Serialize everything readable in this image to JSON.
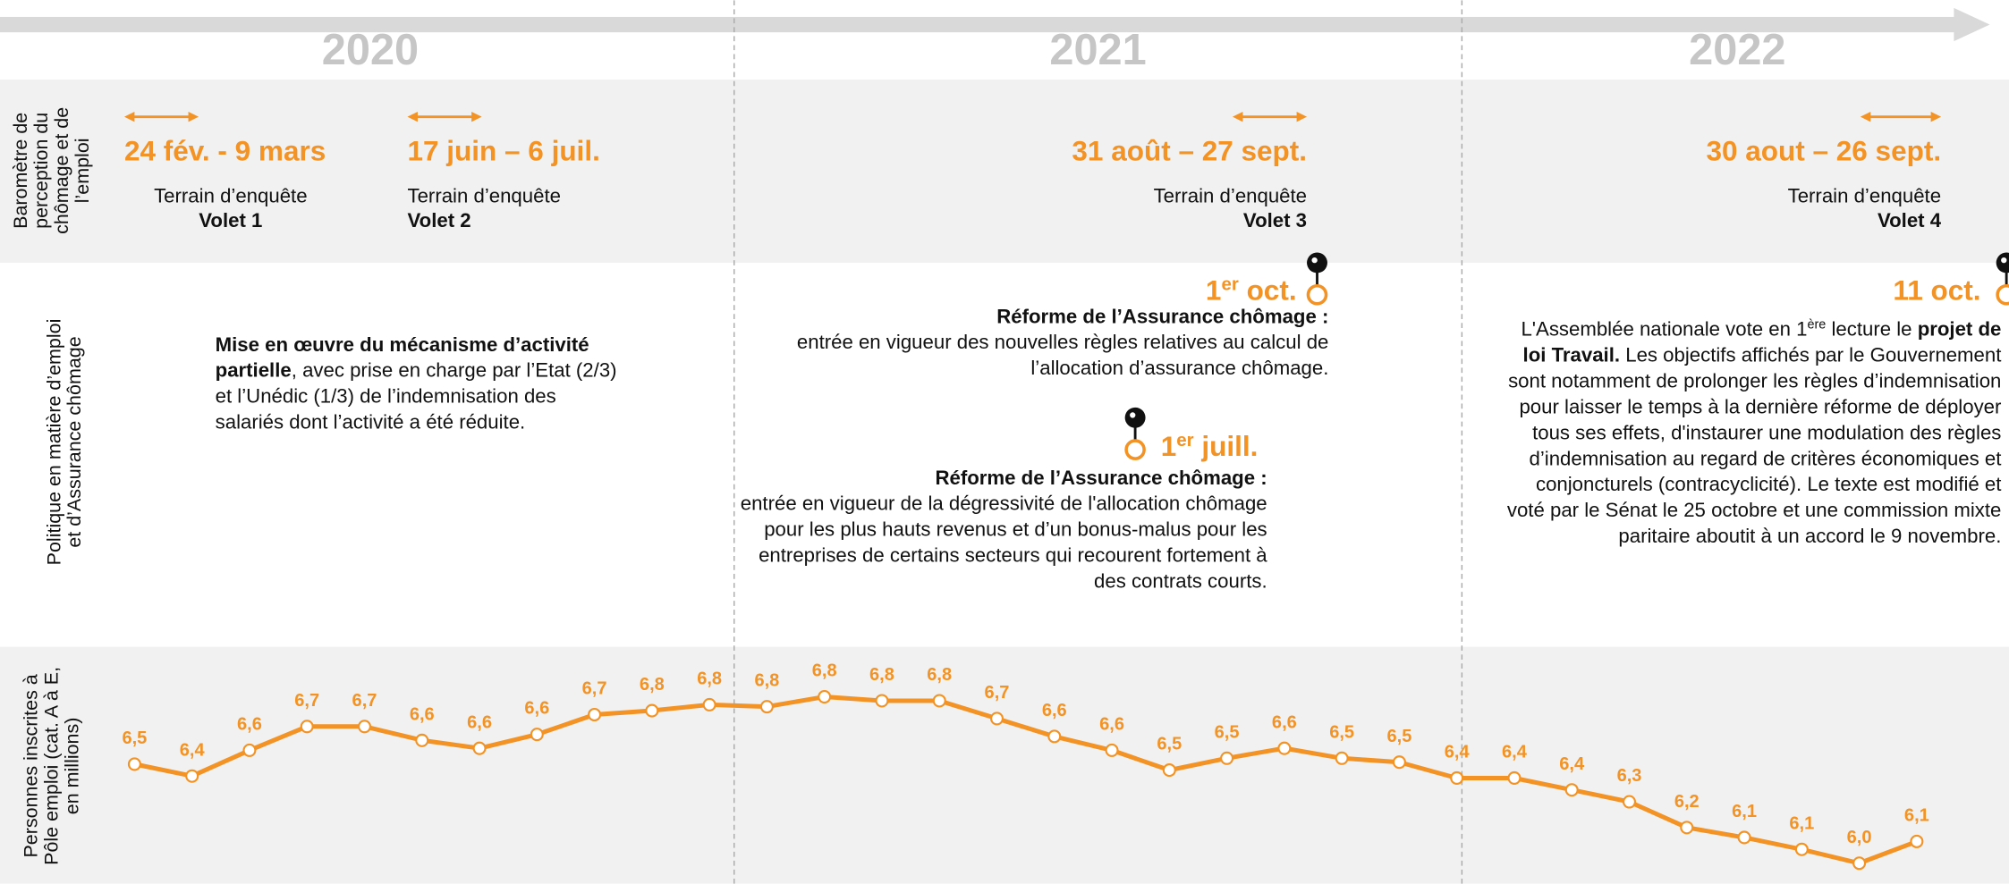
{
  "years": [
    "2020",
    "2021",
    "2022"
  ],
  "row_labels": [
    [
      "Baromètre de",
      "perception du",
      "chômage et de",
      "l’emploi"
    ],
    [
      "Politique en matière d’emploi",
      "et d’Assurance chômage"
    ],
    [
      "Personnes inscrites à",
      "Pôle emploi (cat. A à E,",
      "en millions)"
    ]
  ],
  "surveys": [
    {
      "dates": "24 fév. - 9 mars",
      "label": "Terrain d’enquête",
      "volet": "Volet 1"
    },
    {
      "dates": "17 juin – 6 juil.",
      "label": "Terrain d’enquête",
      "volet": "Volet 2"
    },
    {
      "dates": "31 août – 27 sept.",
      "label": "Terrain d’enquête",
      "volet": "Volet 3"
    },
    {
      "dates": "30 aout – 26 sept.",
      "label": "Terrain d’enquête",
      "volet": "Volet 4"
    }
  ],
  "events": [
    {
      "lines": [
        [
          {
            "t": "Mise en œuvre du mécanisme d’activité",
            "b": true
          }
        ],
        [
          {
            "t": "partielle",
            "b": true
          },
          {
            "t": ", avec prise en charge par l’Etat (2/3)"
          }
        ],
        [
          {
            "t": "et l’Unédic (1/3) de l’indemnisation des"
          }
        ],
        [
          {
            "t": "salariés dont l’activité a été réduite."
          }
        ]
      ]
    },
    {
      "date": [
        {
          "t": "1"
        },
        {
          "t": "er",
          "sup": true
        },
        {
          "t": " oct."
        }
      ],
      "lines": [
        [
          {
            "t": "Réforme de l’Assurance chômage :",
            "b": true
          }
        ],
        [
          {
            "t": "entrée en vigueur des nouvelles règles relatives au calcul de"
          }
        ],
        [
          {
            "t": "l’allocation d’assurance chômage."
          }
        ]
      ]
    },
    {
      "date": [
        {
          "t": "1"
        },
        {
          "t": "er",
          "sup": true
        },
        {
          "t": " juill."
        }
      ],
      "lines": [
        [
          {
            "t": "Réforme de l’Assurance chômage :",
            "b": true
          }
        ],
        [
          {
            "t": "entrée en vigueur de la dégressivité de l'allocation chômage"
          }
        ],
        [
          {
            "t": "pour les plus hauts revenus et d’un bonus-malus pour les"
          }
        ],
        [
          {
            "t": "entreprises de certains secteurs qui recourent fortement à"
          }
        ],
        [
          {
            "t": "des contrats courts."
          }
        ]
      ]
    },
    {
      "date": [
        {
          "t": "11 oct."
        }
      ],
      "lines": [
        [
          {
            "t": "L'Assemblée nationale vote en 1"
          },
          {
            "t": "ère",
            "sup": true
          },
          {
            "t": " lecture le "
          },
          {
            "t": "projet de",
            "b": true
          }
        ],
        [
          {
            "t": "loi Travail.",
            "b": true
          },
          {
            "t": " Les objectifs affichés par le Gouvernement"
          }
        ],
        [
          {
            "t": "sont notamment de prolonger les règles d’indemnisation"
          }
        ],
        [
          {
            "t": "pour laisser le temps à la dernière réforme de déployer"
          }
        ],
        [
          {
            "t": "tous ses effets, d'instaurer une modulation des règles"
          }
        ],
        [
          {
            "t": "d’indemnisation au regard de critères économiques et"
          }
        ],
        [
          {
            "t": "conjoncturels (contracyclicité). Le texte est modifié et"
          }
        ],
        [
          {
            "t": "voté par le Sénat le 25 octobre et une commission mixte"
          }
        ],
        [
          {
            "t": "paritaire aboutit à un accord le 9 novembre."
          }
        ]
      ]
    }
  ],
  "chart_data": {
    "type": "line",
    "color": "#f39325",
    "values": [
      6.49,
      6.43,
      6.56,
      6.68,
      6.68,
      6.61,
      6.57,
      6.64,
      6.74,
      6.76,
      6.79,
      6.78,
      6.83,
      6.81,
      6.81,
      6.72,
      6.63,
      6.56,
      6.46,
      6.52,
      6.57,
      6.52,
      6.5,
      6.42,
      6.42,
      6.36,
      6.3,
      6.17,
      6.12,
      6.06,
      5.99,
      6.1
    ],
    "value_labels": [
      "6,5",
      "6,4",
      "6,6",
      "6,7",
      "6,7",
      "6,6",
      "6,6",
      "6,6",
      "6,7",
      "6,8",
      "6,8",
      "6,8",
      "6,8",
      "6,8",
      "6,8",
      "6,7",
      "6,6",
      "6,6",
      "6,5",
      "6,5",
      "6,6",
      "6,5",
      "6,5",
      "6,4",
      "6,4",
      "6,4",
      "6,3",
      "6,2",
      "6,1",
      "6,1",
      "6,0",
      "6,1"
    ]
  }
}
